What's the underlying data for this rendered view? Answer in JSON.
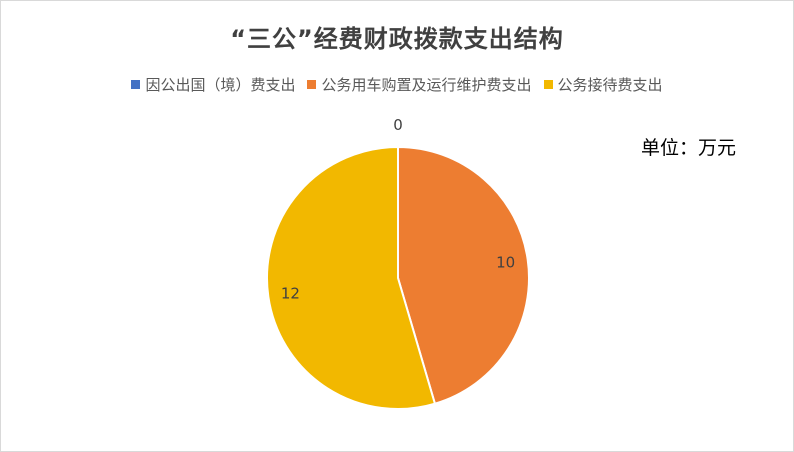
{
  "chart_data": {
    "type": "pie",
    "title": "“三公”经费财政拨款支出结构",
    "categories": [
      "因公出国（境）费支出",
      "公务用车购置及运行维护费支出",
      "公务接待费支出"
    ],
    "values": [
      0,
      10,
      12
    ],
    "colors": [
      "#4472c4",
      "#ed7d31",
      "#f2b800"
    ],
    "legend": "top",
    "annotation": "单位：万元"
  }
}
